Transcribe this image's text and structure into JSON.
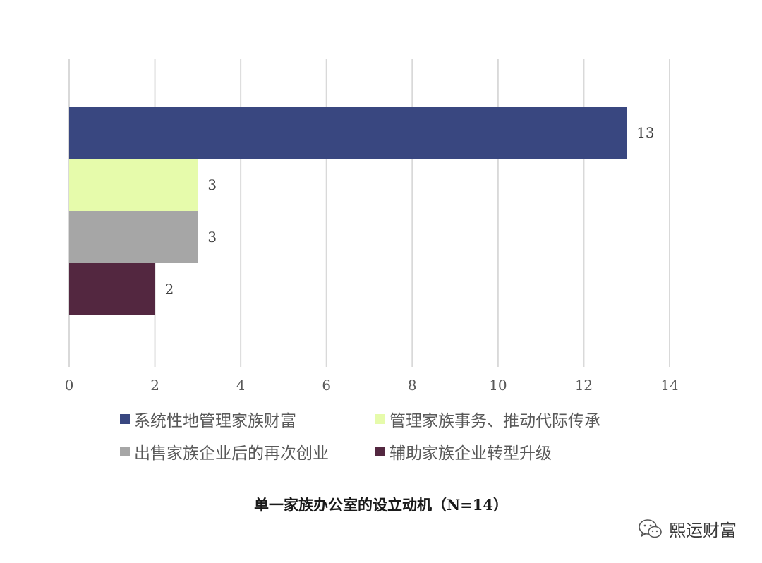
{
  "chart_data": {
    "type": "bar",
    "orientation": "horizontal",
    "title": "单一家族办公室的设立动机（N=14）",
    "xlim": [
      0,
      14
    ],
    "x_ticks": [
      0,
      2,
      4,
      6,
      8,
      10,
      12,
      14
    ],
    "grid": "vertical",
    "legend_position": "bottom",
    "series": [
      {
        "name": "系统性地管理家族财富",
        "value": 13,
        "label": "13",
        "color": "#394780"
      },
      {
        "name": "管理家族事务、推动代际传承",
        "value": 3,
        "label": "3",
        "color": "#e6fbab"
      },
      {
        "name": "出售家族企业后的再次创业",
        "value": 3,
        "label": "3",
        "color": "#a6a6a6"
      },
      {
        "name": "辅助家族企业转型升级",
        "value": 2,
        "label": "2",
        "color": "#532740"
      }
    ]
  },
  "watermark": {
    "text": "熙运财富",
    "icon": "wechat-icon"
  }
}
